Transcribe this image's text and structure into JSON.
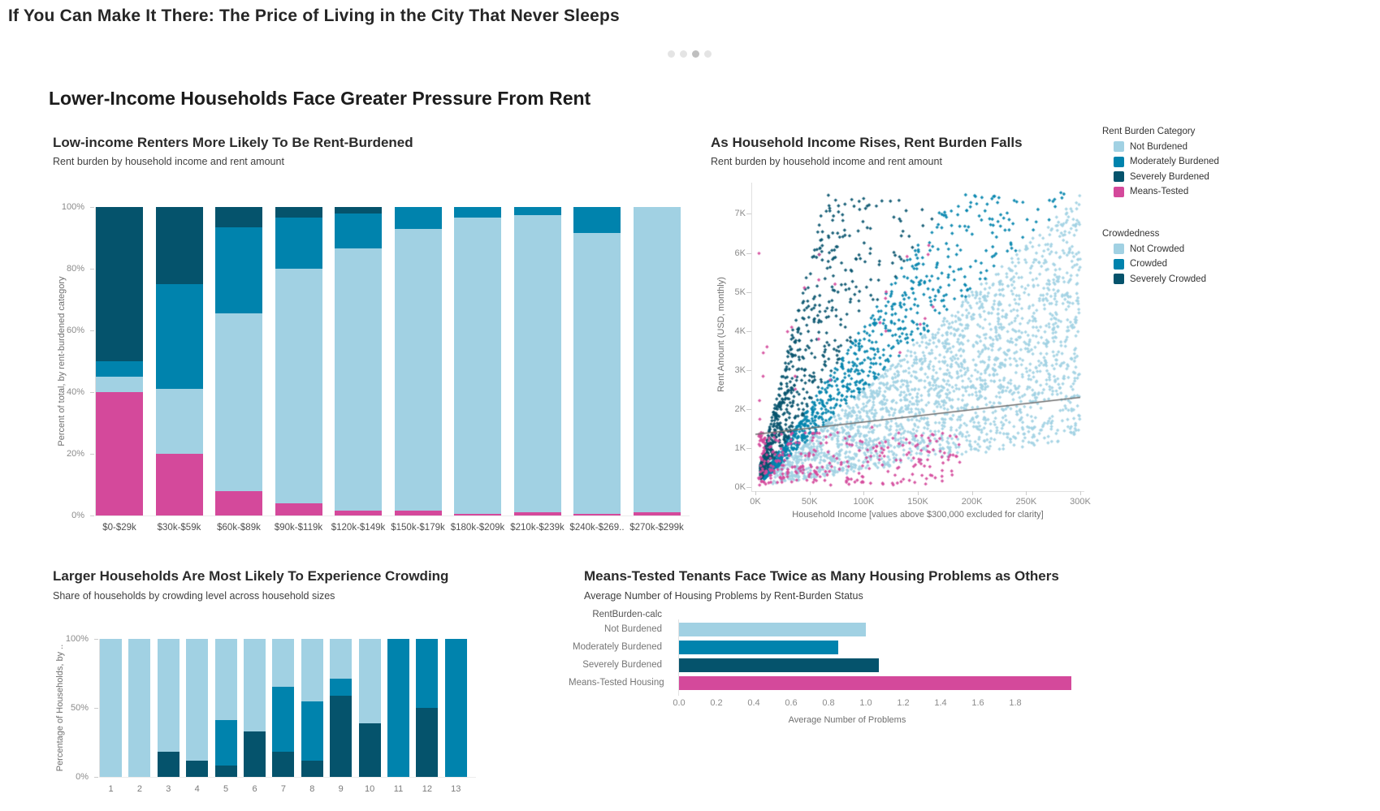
{
  "page": {
    "title": "If You Can Make It There: The Price of Living in the City That Never Sleeps",
    "section_title": "Lower-Income Households Face Greater Pressure From Rent",
    "pagination": {
      "count": 4,
      "active_index": 2
    }
  },
  "colors": {
    "not_burdened": "#a1d1e3",
    "moderately_burdened": "#0083ad",
    "severely_burdened": "#05536c",
    "means_tested": "#d4499b",
    "trend": "#6e6e6e",
    "dot": "#e4e4e4",
    "dot_active": "#bfbfbf"
  },
  "chart_data": [
    {
      "type": "stacked_bar",
      "title": "Low-income Renters More Likely To Be Rent-Burdened",
      "subtitle": "Rent burden by household income and rent amount",
      "ylabel": "Percent of total, by rent-burdened category",
      "ylim": [
        0,
        100
      ],
      "y_ticks": [
        0,
        20,
        40,
        60,
        80,
        100
      ],
      "y_tick_suffix": "%",
      "categories": [
        "$0-$29k",
        "$30k-$59k",
        "$60k-$89k",
        "$90k-$119k",
        "$120k-$149k",
        "$150k-$179k",
        "$180k-$209k",
        "$210k-$239k",
        "$240k-$269..",
        "$270k-$299k"
      ],
      "series": [
        {
          "name": "Means-Tested",
          "color_key": "means_tested",
          "values": [
            40,
            20,
            8,
            4,
            1.5,
            1.5,
            0.5,
            1,
            0.5,
            1
          ]
        },
        {
          "name": "Not Burdened",
          "color_key": "not_burdened",
          "values": [
            5,
            21,
            57.5,
            76,
            85,
            91.5,
            96,
            96.5,
            91,
            99
          ]
        },
        {
          "name": "Moderately Burdened",
          "color_key": "moderately_burdened",
          "values": [
            5,
            34,
            28,
            16.5,
            11.5,
            7,
            3.5,
            2.5,
            8.5,
            0
          ]
        },
        {
          "name": "Severely Burdened",
          "color_key": "severely_burdened",
          "values": [
            50,
            25,
            6.5,
            3.5,
            2,
            0,
            0,
            0,
            0,
            0
          ]
        }
      ]
    },
    {
      "type": "scatter",
      "title": "As Household Income Rises, Rent Burden Falls",
      "subtitle": "Rent burden by household income and rent amount",
      "xlabel": "Household Income [values above $300,000 excluded for clarity]",
      "ylabel": "Rent Amount (USD, monthly)",
      "x_ticks": [
        "0K",
        "50K",
        "100K",
        "150K",
        "200K",
        "250K",
        "300K"
      ],
      "y_ticks": [
        "0K",
        "1K",
        "2K",
        "3K",
        "4K",
        "5K",
        "6K",
        "7K"
      ],
      "xlim": [
        0,
        300
      ],
      "ylim": [
        0,
        7.8
      ],
      "legend": [
        {
          "title": "Rent Burden Category",
          "items": [
            {
              "label": "Not Burdened",
              "color_key": "not_burdened"
            },
            {
              "label": "Moderately Burdened",
              "color_key": "moderately_burdened"
            },
            {
              "label": "Severely Burdened",
              "color_key": "severely_burdened"
            },
            {
              "label": "Means-Tested",
              "color_key": "means_tested"
            }
          ]
        },
        {
          "title": "Crowdedness",
          "items": [
            {
              "label": "Not Crowded",
              "color_key": "not_burdened"
            },
            {
              "label": "Crowded",
              "color_key": "moderately_burdened"
            },
            {
              "label": "Severely Crowded",
              "color_key": "severely_burdened"
            }
          ]
        }
      ],
      "trend_line": {
        "x": [
          0,
          300
        ],
        "y": [
          1.35,
          2.3
        ]
      },
      "point_generation": {
        "seed": 42,
        "shape": "diamond",
        "size": 2.2,
        "rent_cap": 7.55,
        "series": [
          {
            "label": "Not Burdened",
            "color_key": "not_burdened",
            "count": 2200,
            "income_range": [
              15,
              300
            ],
            "income_bias": 0.8,
            "rent_share_range": [
              0.05,
              0.3
            ]
          },
          {
            "label": "Moderately Burdened",
            "color_key": "moderately_burdened",
            "count": 900,
            "income_range": [
              8,
              290
            ],
            "income_bias": 2.1,
            "rent_share_range": [
              0.3,
              0.5
            ]
          },
          {
            "label": "Severely Burdened",
            "color_key": "severely_burdened",
            "count": 760,
            "income_range": [
              5,
              210
            ],
            "income_bias": 2.6,
            "rent_share_range": [
              0.5,
              1.4
            ]
          },
          {
            "label": "Means-Tested",
            "color_key": "means_tested",
            "count": 300,
            "income_range": [
              3,
              190
            ],
            "income_bias": 1.8,
            "rent_range": [
              0.05,
              1.4
            ],
            "outlier_count": 28,
            "outlier_rent_range": [
              1.5,
              6.2
            ]
          }
        ]
      }
    },
    {
      "type": "stacked_bar",
      "title": "Larger Households Are Most Likely To Experience Crowding",
      "subtitle": "Share of households by crowding level across household sizes",
      "ylabel": "Percentage of Households, by ..",
      "ylim": [
        0,
        100
      ],
      "y_ticks": [
        0,
        50,
        100
      ],
      "y_tick_suffix": "%",
      "categories": [
        "1",
        "2",
        "3",
        "4",
        "5",
        "6",
        "7",
        "8",
        "9",
        "10",
        "11",
        "12",
        "13"
      ],
      "series": [
        {
          "name": "Severely Crowded",
          "color_key": "severely_burdened",
          "values": [
            0,
            0,
            18,
            12,
            8,
            33,
            18,
            12,
            59,
            39,
            0,
            50,
            0
          ]
        },
        {
          "name": "Crowded",
          "color_key": "moderately_burdened",
          "values": [
            0,
            0,
            0,
            0,
            33,
            0,
            47.5,
            43,
            12,
            0,
            100,
            50,
            100
          ]
        },
        {
          "name": "Not Crowded",
          "color_key": "not_burdened",
          "values": [
            100,
            100,
            82,
            88,
            59,
            67,
            34.5,
            45,
            29,
            61,
            0,
            0,
            0
          ]
        }
      ]
    },
    {
      "type": "horizontal_bar",
      "title": "Means-Tested Tenants Face Twice as Many Housing Problems as Others",
      "subtitle": "Average Number of Housing Problems by Rent-Burden Status",
      "group_label": "RentBurden-calc",
      "xlabel": "Average Number of Problems",
      "categories": [
        "Not Burdened",
        "Moderately Burdened",
        "Severely Burdened",
        "Means-Tested Housing"
      ],
      "values": [
        1.0,
        0.85,
        1.07,
        2.1
      ],
      "color_keys": [
        "not_burdened",
        "moderately_burdened",
        "severely_burdened",
        "means_tested"
      ],
      "x_ticks": [
        0.0,
        0.2,
        0.4,
        0.6,
        0.8,
        1.0,
        1.2,
        1.4,
        1.6,
        1.8
      ],
      "xlim": [
        0,
        2.2
      ]
    }
  ]
}
